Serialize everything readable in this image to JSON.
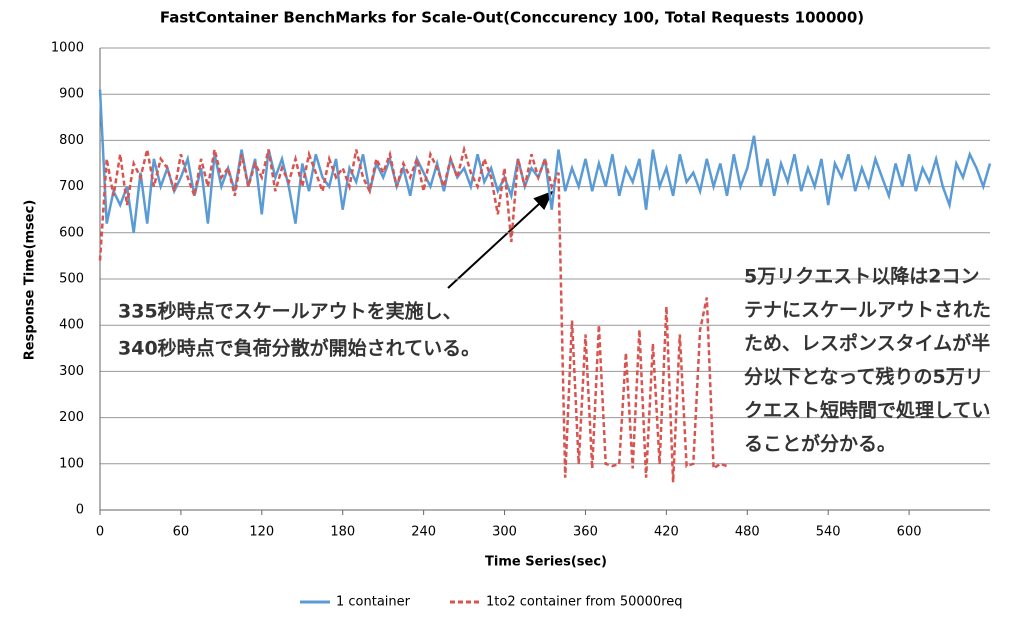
{
  "chart_data": {
    "type": "line",
    "title": "FastContainer BenchMarks for Scale-Out(Conccurency 100, Total Requests 100000)",
    "x_label": "Time Series(sec)",
    "y_label": "Response Time(msec)",
    "xlim": [
      0,
      660
    ],
    "ylim": [
      0,
      1000
    ],
    "xticks": [
      0,
      60,
      120,
      180,
      240,
      300,
      360,
      420,
      480,
      540,
      600
    ],
    "yticks": [
      0,
      100,
      200,
      300,
      400,
      500,
      600,
      700,
      800,
      900,
      1000
    ],
    "grid": true,
    "legend": "bottom",
    "x": [
      0,
      5,
      10,
      15,
      20,
      25,
      30,
      35,
      40,
      45,
      50,
      55,
      60,
      65,
      70,
      75,
      80,
      85,
      90,
      95,
      100,
      105,
      110,
      115,
      120,
      125,
      130,
      135,
      140,
      145,
      150,
      155,
      160,
      165,
      170,
      175,
      180,
      185,
      190,
      195,
      200,
      205,
      210,
      215,
      220,
      225,
      230,
      235,
      240,
      245,
      250,
      255,
      260,
      265,
      270,
      275,
      280,
      285,
      290,
      295,
      300,
      305,
      310,
      315,
      320,
      325,
      330,
      335,
      340,
      345,
      350,
      355,
      360,
      365,
      370,
      375,
      380,
      385,
      390,
      395,
      400,
      405,
      410,
      415,
      420,
      425,
      430,
      435,
      440,
      445,
      450,
      455,
      460,
      465,
      470,
      475,
      480,
      485,
      490,
      495,
      500,
      505,
      510,
      515,
      520,
      525,
      530,
      535,
      540,
      545,
      550,
      555,
      560,
      565,
      570,
      575,
      580,
      585,
      590,
      595,
      600,
      605,
      610,
      615,
      620,
      625,
      630,
      635,
      640,
      645,
      650,
      655,
      660
    ],
    "series": [
      {
        "name": "1 container",
        "color": "#5b9bd5",
        "line_style": "solid",
        "values": [
          910,
          620,
          690,
          660,
          700,
          600,
          730,
          620,
          760,
          700,
          740,
          690,
          720,
          760,
          680,
          740,
          620,
          770,
          700,
          740,
          690,
          780,
          700,
          760,
          640,
          780,
          720,
          760,
          700,
          620,
          750,
          690,
          770,
          720,
          700,
          760,
          650,
          740,
          710,
          770,
          690,
          750,
          720,
          760,
          700,
          740,
          680,
          760,
          730,
          700,
          750,
          690,
          760,
          720,
          740,
          700,
          770,
          710,
          740,
          690,
          720,
          680,
          760,
          700,
          740,
          720,
          760,
          650,
          780,
          690,
          740,
          700,
          760,
          690,
          750,
          700,
          770,
          680,
          740,
          710,
          760,
          650,
          780,
          700,
          740,
          680,
          770,
          710,
          730,
          690,
          760,
          700,
          750,
          680,
          770,
          700,
          740,
          810,
          700,
          760,
          680,
          750,
          710,
          770,
          690,
          740,
          700,
          760,
          660,
          750,
          720,
          770,
          690,
          740,
          700,
          760,
          720,
          680,
          750,
          700,
          770,
          690,
          740,
          710,
          760,
          700,
          660,
          750,
          720,
          770,
          740,
          700,
          750
        ]
      },
      {
        "name": "1to2 container from 50000req",
        "color": "#d9534f",
        "line_style": "dashed",
        "values": [
          540,
          760,
          680,
          770,
          660,
          750,
          720,
          780,
          700,
          760,
          740,
          690,
          770,
          720,
          680,
          760,
          700,
          780,
          720,
          740,
          680,
          770,
          700,
          750,
          720,
          780,
          690,
          740,
          710,
          760,
          700,
          770,
          730,
          690,
          760,
          720,
          740,
          700,
          780,
          720,
          690,
          760,
          730,
          770,
          700,
          750,
          720,
          760,
          690,
          770,
          740,
          700,
          760,
          720,
          780,
          730,
          700,
          760,
          720,
          640,
          740,
          580,
          760,
          700,
          770,
          720,
          760,
          700,
          730,
          70,
          410,
          100,
          380,
          90,
          400,
          100,
          95,
          100,
          340,
          90,
          390,
          70,
          360,
          100,
          440,
          60,
          380,
          95,
          100,
          390,
          460,
          90,
          100,
          95,
          null,
          null,
          null,
          null,
          null,
          null,
          null,
          null,
          null,
          null,
          null,
          null,
          null,
          null,
          null,
          null,
          null,
          null,
          null,
          null,
          null,
          null,
          null,
          null,
          null,
          null,
          null,
          null,
          null,
          null,
          null,
          null,
          null,
          null,
          null,
          null,
          null,
          null,
          null
        ]
      }
    ],
    "annotations": [
      {
        "lines": [
          "335秒時点でスケールアウトを実施し、",
          "340秒時点で負荷分散が開始されている。"
        ]
      },
      {
        "lines": [
          "5万リクエスト以降は2コン",
          "テナにスケールアウトされた",
          "ため、レスポンスタイムが半",
          "分以下となって残りの5万リ",
          "クエスト短時間で処理してい",
          "ることが分かる。"
        ]
      }
    ]
  }
}
